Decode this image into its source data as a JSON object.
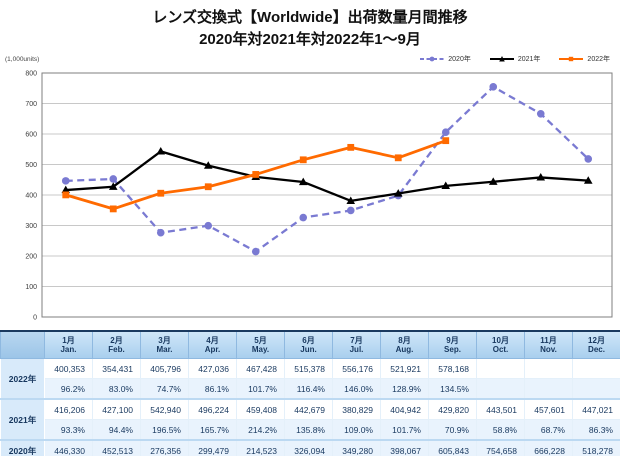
{
  "title": {
    "line1": "レンズ交換式【Worldwide】出荷数量月間推移",
    "line2": "2020年対2021年対2022年1～9月"
  },
  "chart_data": {
    "type": "line",
    "title": "レンズ交換式【Worldwide】出荷数量月間推移 2020年対2021年対2022年1～9月",
    "unit_label": "(1,000units)",
    "categories": [
      "1月",
      "2月",
      "3月",
      "4月",
      "5月",
      "6月",
      "7月",
      "8月",
      "9月",
      "10月",
      "11月",
      "12月"
    ],
    "ylim": [
      0,
      800
    ],
    "yticks": [
      0,
      100,
      200,
      300,
      400,
      500,
      600,
      700,
      800
    ],
    "grid": true,
    "legend_position": "top-right",
    "series": [
      {
        "name": "2020年",
        "color": "#7a7ad2",
        "dash": true,
        "marker": "circle",
        "values": [
          446.33,
          452.513,
          276.356,
          299.479,
          214.523,
          326.094,
          349.28,
          398.067,
          605.843,
          754.658,
          666.228,
          518.278
        ]
      },
      {
        "name": "2021年",
        "color": "#000000",
        "dash": false,
        "marker": "triangle",
        "values": [
          416.206,
          427.1,
          542.94,
          496.224,
          459.408,
          442.679,
          380.829,
          404.942,
          429.82,
          443.501,
          457.601,
          447.021
        ]
      },
      {
        "name": "2022年",
        "color": "#ff6a00",
        "dash": false,
        "marker": "square",
        "values": [
          400.353,
          354.431,
          405.796,
          427.036,
          467.428,
          515.378,
          556.176,
          521.921,
          578.168
        ]
      }
    ]
  },
  "table": {
    "months_jp": [
      "1月",
      "2月",
      "3月",
      "4月",
      "5月",
      "6月",
      "7月",
      "8月",
      "9月",
      "10月",
      "11月",
      "12月"
    ],
    "months_en": [
      "Jan.",
      "Feb.",
      "Mar.",
      "Apr.",
      "May.",
      "Jun.",
      "Jul.",
      "Aug.",
      "Sep.",
      "Oct.",
      "Nov.",
      "Dec."
    ],
    "rows": [
      {
        "year": "2022年",
        "values": [
          "400,353",
          "354,431",
          "405,796",
          "427,036",
          "467,428",
          "515,378",
          "556,176",
          "521,921",
          "578,168",
          "",
          "",
          ""
        ],
        "pcts": [
          "96.2%",
          "83.0%",
          "74.7%",
          "86.1%",
          "101.7%",
          "116.4%",
          "146.0%",
          "128.9%",
          "134.5%",
          "",
          "",
          ""
        ]
      },
      {
        "year": "2021年",
        "values": [
          "416,206",
          "427,100",
          "542,940",
          "496,224",
          "459,408",
          "442,679",
          "380,829",
          "404,942",
          "429,820",
          "443,501",
          "457,601",
          "447,021"
        ],
        "pcts": [
          "93.3%",
          "94.4%",
          "196.5%",
          "165.7%",
          "214.2%",
          "135.8%",
          "109.0%",
          "101.7%",
          "70.9%",
          "58.8%",
          "68.7%",
          "86.3%"
        ]
      },
      {
        "year": "2020年",
        "values": [
          "446,330",
          "452,513",
          "276,356",
          "299,479",
          "214,523",
          "326,094",
          "349,280",
          "398,067",
          "605,843",
          "754,658",
          "666,228",
          "518,278"
        ],
        "pcts": null
      }
    ]
  }
}
